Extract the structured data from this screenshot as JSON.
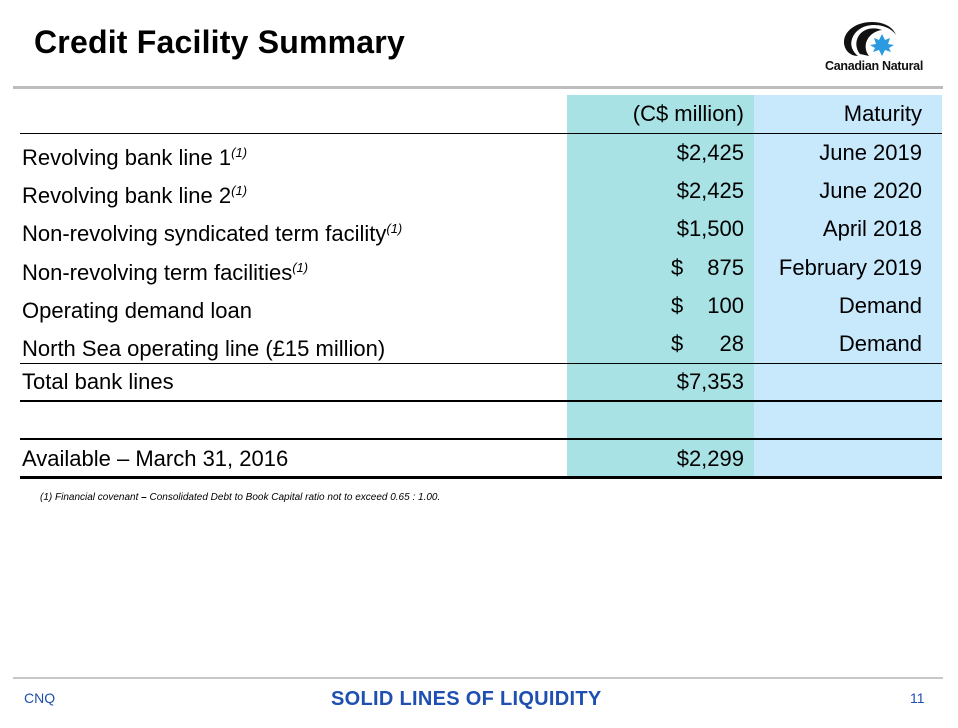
{
  "title": "Credit Facility Summary",
  "logo": {
    "text": "Canadian Natural",
    "icon": "canadian-natural-logo"
  },
  "table": {
    "headers": {
      "amount": "(C$ million)",
      "maturity": "Maturity"
    },
    "rows": [
      {
        "label": "Revolving bank line 1",
        "note": "(1)",
        "currency": "",
        "amount": "$2,425",
        "maturity": "June 2019"
      },
      {
        "label": "Revolving bank line 2",
        "note": "(1)",
        "currency": "",
        "amount": "$2,425",
        "maturity": "June 2020"
      },
      {
        "label": "Non-revolving syndicated term facility",
        "note": "(1)",
        "currency": "",
        "amount": "$1,500",
        "maturity": "April 2018"
      },
      {
        "label": "Non-revolving term facilities",
        "note": "(1)",
        "currency": "$",
        "amount": "875",
        "maturity": "February 2019"
      },
      {
        "label": "Operating demand loan",
        "note": "",
        "currency": "$",
        "amount": "100",
        "maturity": "Demand"
      },
      {
        "label": "North Sea operating line (£15 million)",
        "note": "",
        "currency": "$",
        "amount": "28",
        "maturity": "Demand"
      }
    ],
    "total": {
      "label": "Total bank lines",
      "amount": "$7,353",
      "maturity": ""
    },
    "available": {
      "label": "Available – March 31, 2016",
      "amount": "$2,299",
      "maturity": ""
    }
  },
  "footnote": {
    "prefix": "(1) Financial covenant ",
    "dash": "–",
    "text": " Consolidated Debt to Book Capital ratio not to exceed 0.65 : 1.00."
  },
  "footer": {
    "left": "CNQ",
    "center": "SOLID LINES OF LIQUIDITY",
    "page": "11"
  },
  "colors": {
    "amount_column": "#a8e2e4",
    "maturity_column": "#c8e8fc",
    "footer_text": "#1f4fb0"
  }
}
